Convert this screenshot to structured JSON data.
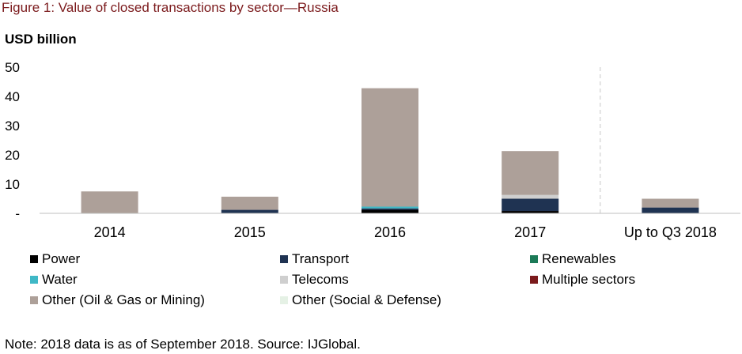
{
  "figure": {
    "title": "Figure 1: Value of closed transactions by sector—Russia",
    "unit": "USD billion",
    "note": "Note: 2018 data is as of September 2018. Source: IJGlobal."
  },
  "chart_data": {
    "type": "bar",
    "stacked": true,
    "title": "Figure 1: Value of closed transactions by sector—Russia",
    "ylabel": "USD billion",
    "xlabel": "",
    "categories": [
      "2014",
      "2015",
      "2016",
      "2017",
      "Up to Q3 2018"
    ],
    "y_tick_labels": [
      "-",
      "10",
      "20",
      "30",
      "40",
      "50"
    ],
    "ylim": [
      0,
      50
    ],
    "grid": false,
    "legend": "bottom",
    "separator_before_last_category": true,
    "series": [
      {
        "name": "Power",
        "color": "#000000",
        "values": [
          0,
          0,
          1.2,
          0.8,
          0
        ]
      },
      {
        "name": "Transport",
        "color": "#1f3352",
        "values": [
          0,
          1.2,
          0.5,
          4.2,
          2.0
        ]
      },
      {
        "name": "Renewables",
        "color": "#1b7a57",
        "values": [
          0,
          0,
          0,
          0,
          0
        ]
      },
      {
        "name": "Water",
        "color": "#3fb8c6",
        "values": [
          0,
          0,
          0.6,
          0,
          0
        ]
      },
      {
        "name": "Telecoms",
        "color": "#cfcfcf",
        "values": [
          0,
          0,
          0,
          1.3,
          0
        ]
      },
      {
        "name": "Multiple sectors",
        "color": "#7b1a1c",
        "values": [
          0,
          0,
          0,
          0,
          0
        ]
      },
      {
        "name": "Other (Oil & Gas or Mining)",
        "color": "#ada099",
        "values": [
          7.5,
          4.5,
          40.5,
          15.0,
          3.0
        ]
      },
      {
        "name": "Other (Social & Defense)",
        "color": "#e5f1e5",
        "values": [
          0,
          0,
          0,
          0,
          0
        ]
      }
    ]
  }
}
